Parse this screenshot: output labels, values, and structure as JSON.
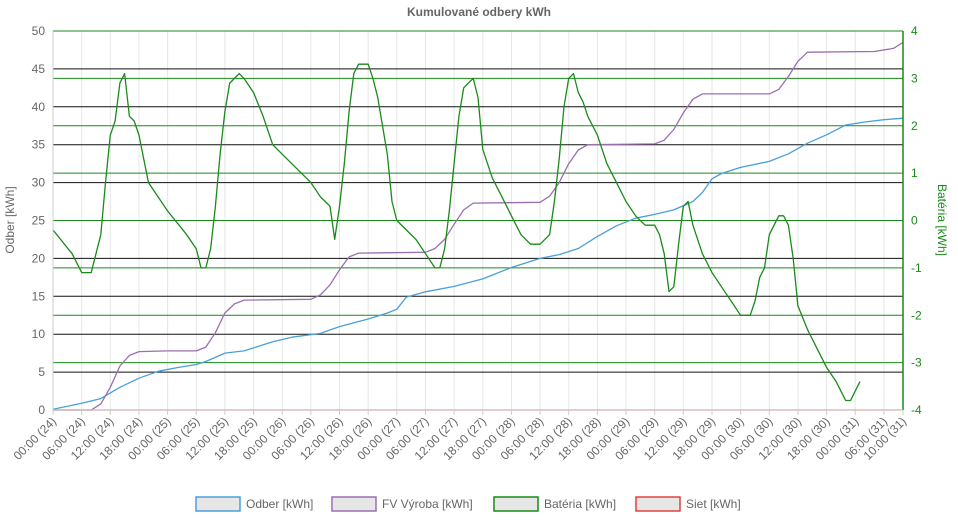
{
  "chart_data": {
    "type": "line",
    "title": "Kumulované odbery kWh",
    "ylabel": "Odber [kWh]",
    "y2label": "Batéria [kWh]",
    "ylim": [
      0,
      50
    ],
    "y2lim": [
      -4,
      4
    ],
    "yticks": [
      "0",
      "5",
      "10",
      "15",
      "20",
      "25",
      "30",
      "35",
      "40",
      "45",
      "50"
    ],
    "y2ticks": [
      "-4",
      "-3",
      "-2",
      "-1",
      "0",
      "1",
      "2",
      "3",
      "4"
    ],
    "xticks": [
      "00:00 (24)",
      "06:00 (24)",
      "12:00 (24)",
      "18:00 (24)",
      "00:00 (25)",
      "06:00 (25)",
      "12:00 (25)",
      "18:00 (25)",
      "00:00 (26)",
      "06:00 (26)",
      "12:00 (26)",
      "18:00 (26)",
      "00:00 (27)",
      "06:00 (27)",
      "12:00 (27)",
      "18:00 (27)",
      "00:00 (28)",
      "06:00 (28)",
      "12:00 (28)",
      "18:00 (28)",
      "00:00 (29)",
      "06:00 (29)",
      "12:00 (29)",
      "18:00 (29)",
      "00:00 (30)",
      "06:00 (30)",
      "12:00 (30)",
      "18:00 (30)",
      "00:00 (31)",
      "06:00 (31)",
      "10:00 (31)"
    ],
    "grid": true,
    "legend_position": "bottom",
    "x_unit": "hours",
    "x_range": [
      0,
      178
    ],
    "series": [
      {
        "name": "Odber [kWh]",
        "axis": "left",
        "color": "#4a9fd8",
        "points": [
          [
            0,
            0.1
          ],
          [
            6,
            0.9
          ],
          [
            10,
            1.5
          ],
          [
            14,
            3.0
          ],
          [
            18,
            4.2
          ],
          [
            22,
            5.1
          ],
          [
            26,
            5.6
          ],
          [
            30,
            6.0
          ],
          [
            32,
            6.4
          ],
          [
            36,
            7.5
          ],
          [
            40,
            7.8
          ],
          [
            46,
            9.0
          ],
          [
            50,
            9.6
          ],
          [
            56,
            10.1
          ],
          [
            60,
            11.0
          ],
          [
            66,
            12.0
          ],
          [
            70,
            12.8
          ],
          [
            72,
            13.3
          ],
          [
            74,
            14.9
          ],
          [
            78,
            15.6
          ],
          [
            84,
            16.3
          ],
          [
            90,
            17.3
          ],
          [
            96,
            18.8
          ],
          [
            102,
            20.0
          ],
          [
            106,
            20.5
          ],
          [
            110,
            21.3
          ],
          [
            114,
            22.9
          ],
          [
            118,
            24.3
          ],
          [
            122,
            25.3
          ],
          [
            126,
            25.8
          ],
          [
            130,
            26.4
          ],
          [
            134,
            27.5
          ],
          [
            136,
            28.7
          ],
          [
            138,
            30.5
          ],
          [
            140,
            31.2
          ],
          [
            144,
            32.0
          ],
          [
            150,
            32.8
          ],
          [
            154,
            33.8
          ],
          [
            158,
            35.2
          ],
          [
            162,
            36.3
          ],
          [
            166,
            37.6
          ],
          [
            170,
            38.0
          ],
          [
            174,
            38.3
          ],
          [
            178,
            38.5
          ]
        ]
      },
      {
        "name": "FV Výroba [kWh]",
        "axis": "left",
        "color": "#9a6fb0",
        "points": [
          [
            0,
            0.0
          ],
          [
            8,
            0.0
          ],
          [
            10,
            0.8
          ],
          [
            12,
            3.0
          ],
          [
            14,
            5.8
          ],
          [
            16,
            7.2
          ],
          [
            18,
            7.7
          ],
          [
            24,
            7.8
          ],
          [
            30,
            7.8
          ],
          [
            32,
            8.3
          ],
          [
            34,
            10.2
          ],
          [
            36,
            12.8
          ],
          [
            38,
            14.0
          ],
          [
            40,
            14.5
          ],
          [
            54,
            14.6
          ],
          [
            56,
            15.2
          ],
          [
            58,
            16.5
          ],
          [
            60,
            18.5
          ],
          [
            62,
            20.2
          ],
          [
            64,
            20.7
          ],
          [
            78,
            20.8
          ],
          [
            80,
            21.3
          ],
          [
            82,
            22.5
          ],
          [
            84,
            24.5
          ],
          [
            86,
            26.4
          ],
          [
            88,
            27.3
          ],
          [
            102,
            27.4
          ],
          [
            104,
            28.2
          ],
          [
            106,
            30.0
          ],
          [
            108,
            32.5
          ],
          [
            110,
            34.3
          ],
          [
            112,
            35.0
          ],
          [
            126,
            35.1
          ],
          [
            128,
            35.6
          ],
          [
            130,
            37.0
          ],
          [
            132,
            39.2
          ],
          [
            134,
            41.0
          ],
          [
            136,
            41.7
          ],
          [
            150,
            41.7
          ],
          [
            152,
            42.3
          ],
          [
            154,
            44.0
          ],
          [
            156,
            46.0
          ],
          [
            158,
            47.2
          ],
          [
            172,
            47.3
          ],
          [
            176,
            47.7
          ],
          [
            178,
            48.5
          ]
        ]
      },
      {
        "name": "Batéria [kWh]",
        "axis": "right",
        "color": "#1a8a1a",
        "points": [
          [
            0,
            -0.2
          ],
          [
            4,
            -0.7
          ],
          [
            6,
            -1.1
          ],
          [
            8,
            -1.1
          ],
          [
            10,
            -0.3
          ],
          [
            11,
            0.8
          ],
          [
            12,
            1.8
          ],
          [
            13,
            2.1
          ],
          [
            14,
            2.9
          ],
          [
            15,
            3.1
          ],
          [
            16,
            2.2
          ],
          [
            17,
            2.1
          ],
          [
            18,
            1.8
          ],
          [
            19,
            1.3
          ],
          [
            20,
            0.8
          ],
          [
            24,
            0.2
          ],
          [
            28,
            -0.3
          ],
          [
            30,
            -0.6
          ],
          [
            31,
            -1.0
          ],
          [
            32,
            -1.0
          ],
          [
            33,
            -0.6
          ],
          [
            34,
            0.3
          ],
          [
            35,
            1.4
          ],
          [
            36,
            2.3
          ],
          [
            37,
            2.9
          ],
          [
            38,
            3.0
          ],
          [
            39,
            3.1
          ],
          [
            40,
            3.0
          ],
          [
            42,
            2.7
          ],
          [
            44,
            2.2
          ],
          [
            46,
            1.6
          ],
          [
            48,
            1.4
          ],
          [
            50,
            1.2
          ],
          [
            54,
            0.8
          ],
          [
            56,
            0.5
          ],
          [
            57,
            0.4
          ],
          [
            58,
            0.3
          ],
          [
            59,
            -0.4
          ],
          [
            60,
            0.3
          ],
          [
            61,
            1.2
          ],
          [
            62,
            2.3
          ],
          [
            63,
            3.1
          ],
          [
            64,
            3.3
          ],
          [
            66,
            3.3
          ],
          [
            67,
            3.0
          ],
          [
            68,
            2.6
          ],
          [
            70,
            1.4
          ],
          [
            71,
            0.4
          ],
          [
            72,
            0.0
          ],
          [
            74,
            -0.2
          ],
          [
            76,
            -0.4
          ],
          [
            78,
            -0.7
          ],
          [
            80,
            -1.0
          ],
          [
            81,
            -1.0
          ],
          [
            82,
            -0.6
          ],
          [
            83,
            0.2
          ],
          [
            84,
            1.2
          ],
          [
            85,
            2.2
          ],
          [
            86,
            2.8
          ],
          [
            87,
            2.9
          ],
          [
            88,
            3.0
          ],
          [
            89,
            2.6
          ],
          [
            90,
            1.5
          ],
          [
            92,
            0.9
          ],
          [
            94,
            0.5
          ],
          [
            96,
            0.1
          ],
          [
            98,
            -0.3
          ],
          [
            100,
            -0.5
          ],
          [
            102,
            -0.5
          ],
          [
            104,
            -0.3
          ],
          [
            105,
            0.4
          ],
          [
            106,
            1.3
          ],
          [
            107,
            2.4
          ],
          [
            108,
            3.0
          ],
          [
            109,
            3.1
          ],
          [
            110,
            2.7
          ],
          [
            111,
            2.5
          ],
          [
            112,
            2.2
          ],
          [
            114,
            1.8
          ],
          [
            116,
            1.2
          ],
          [
            118,
            0.8
          ],
          [
            120,
            0.4
          ],
          [
            122,
            0.1
          ],
          [
            124,
            -0.1
          ],
          [
            126,
            -0.1
          ],
          [
            127,
            -0.3
          ],
          [
            128,
            -0.7
          ],
          [
            129,
            -1.5
          ],
          [
            130,
            -1.4
          ],
          [
            131,
            -0.5
          ],
          [
            132,
            0.3
          ],
          [
            133,
            0.4
          ],
          [
            134,
            -0.1
          ],
          [
            136,
            -0.7
          ],
          [
            138,
            -1.1
          ],
          [
            140,
            -1.4
          ],
          [
            142,
            -1.7
          ],
          [
            144,
            -2.0
          ],
          [
            146,
            -2.0
          ],
          [
            147,
            -1.7
          ],
          [
            148,
            -1.2
          ],
          [
            149,
            -1.0
          ],
          [
            150,
            -0.3
          ],
          [
            151,
            -0.1
          ],
          [
            152,
            0.1
          ],
          [
            153,
            0.1
          ],
          [
            154,
            -0.1
          ],
          [
            155,
            -0.8
          ],
          [
            156,
            -1.8
          ],
          [
            158,
            -2.3
          ],
          [
            160,
            -2.7
          ],
          [
            162,
            -3.1
          ],
          [
            164,
            -3.4
          ],
          [
            165,
            -3.6
          ],
          [
            166,
            -3.8
          ],
          [
            167,
            -3.8
          ],
          [
            168,
            -3.6
          ],
          [
            169,
            -3.4
          ]
        ]
      },
      {
        "name": "Siet [kWh]",
        "axis": "left",
        "color": "#e04040",
        "points": [
          [
            0,
            0.0
          ],
          [
            178,
            0.0
          ]
        ]
      }
    ]
  }
}
